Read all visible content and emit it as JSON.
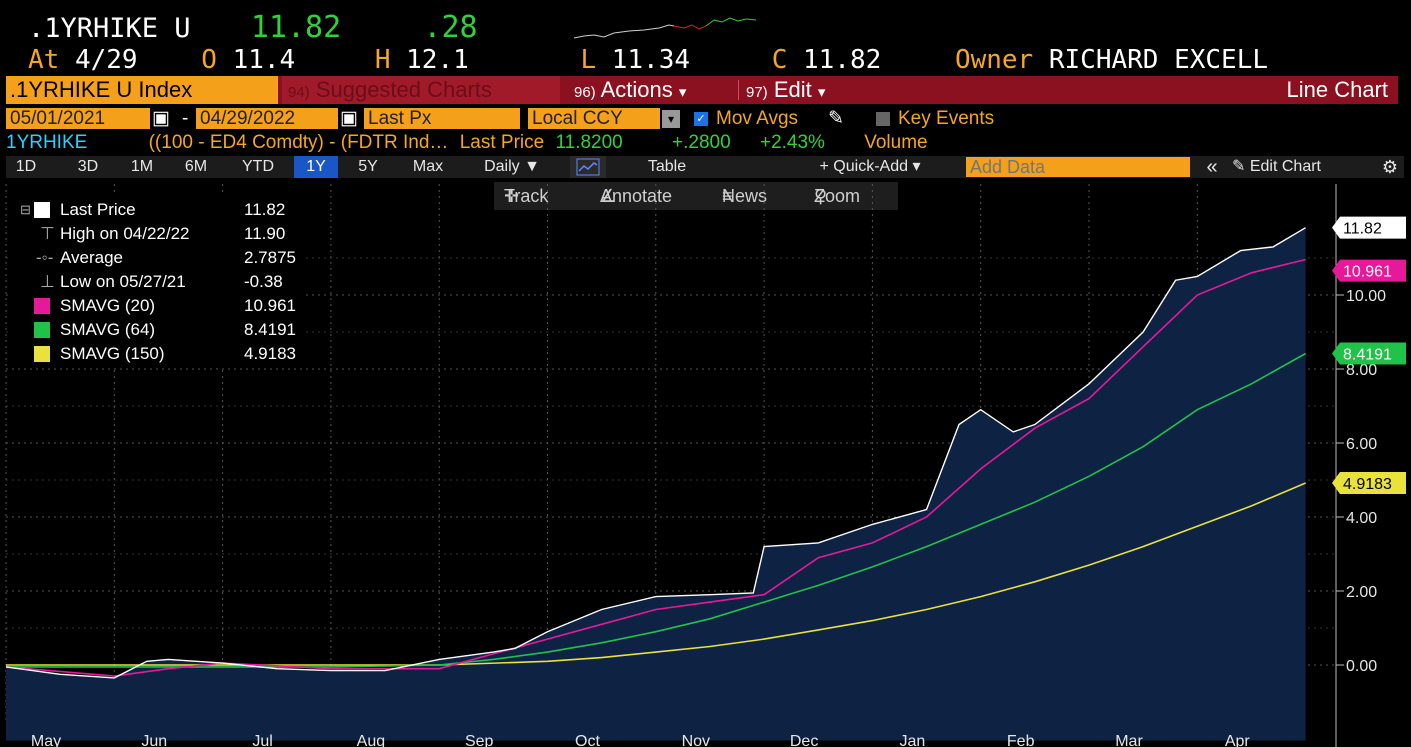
{
  "header": {
    "ticker": ".1YRHIKE U",
    "last": "11.82",
    "change": ".28",
    "at_label": "At",
    "date": "4/29",
    "open_label": "O",
    "open": "11.4",
    "high_label": "H",
    "high": "12.1",
    "low_label": "L",
    "low": "11.34",
    "close_label": "C",
    "close": "11.82",
    "owner_label": "Owner",
    "owner": "RICHARD EXCELL"
  },
  "menubar": {
    "security": ".1YRHIKE U Index",
    "suggested_num": "94)",
    "suggested": "Suggested Charts",
    "actions_num": "96)",
    "actions": "Actions",
    "edit_num": "97)",
    "edit": "Edit",
    "chart_type": "Line Chart",
    "dropdown_glyph": "▾"
  },
  "settings": {
    "start_date": "05/01/2021",
    "date_sep": "-",
    "end_date": "04/29/2022",
    "field": "Last Px",
    "currency": "Local CCY",
    "mov_avgs": "Mov Avgs",
    "key_events": "Key Events"
  },
  "formula": {
    "name": "1YRHIKE",
    "expr": "((100 - ED4 Comdty) - (FDTR Ind…",
    "last_price_label": "Last Price",
    "last_price": "11.8200",
    "change": "+.2800",
    "pct": "+2.43%",
    "volume": "Volume"
  },
  "toolbar": {
    "periods": [
      "1D",
      "3D",
      "1M",
      "6M",
      "YTD",
      "1Y",
      "5Y",
      "Max"
    ],
    "selected_period": "1Y",
    "frequency": "Daily ▼",
    "table": "Table",
    "quick_add": "+ Quick-Add ▾",
    "add_data_placeholder": "Add Data",
    "collapse": "«",
    "edit_chart": "Edit Chart"
  },
  "tools": {
    "track": "Track",
    "annotate": "Annotate",
    "news": "News",
    "zoom": "Zoom"
  },
  "legend": {
    "items": [
      {
        "label": "Last Price",
        "value": "11.82"
      },
      {
        "label": "High on 04/22/22",
        "value": "11.90"
      },
      {
        "label": "Average",
        "value": "2.7875"
      },
      {
        "label": "Low on 05/27/21",
        "value": "-0.38"
      },
      {
        "label": "SMAVG (20)",
        "value": "10.961"
      },
      {
        "label": "SMAVG (64)",
        "value": "8.4191"
      },
      {
        "label": "SMAVG (150)",
        "value": "4.9183"
      }
    ]
  },
  "colors": {
    "price": "#ffffff",
    "area_fill": "#0e2244",
    "sma20": "#e6199a",
    "sma64": "#21c24a",
    "sma150": "#e8e23a",
    "amber": "#f5a01a",
    "menubar": "#8b1020"
  },
  "chart_data": {
    "type": "line",
    "xlabel": "",
    "ylabel": "",
    "x_ticks": [
      "May",
      "Jun",
      "Jul",
      "Aug",
      "Sep",
      "Oct",
      "Nov",
      "Dec",
      "Jan",
      "Feb",
      "Mar",
      "Apr"
    ],
    "y_ticks": [
      "0.00",
      "2.00",
      "4.00",
      "6.00",
      "8.00",
      "10.00"
    ],
    "ylim": [
      -1.5,
      12.3
    ],
    "grid": true,
    "value_labels": [
      "11.82",
      "10.961",
      "8.4191",
      "4.9183"
    ],
    "series": [
      {
        "name": "Last Price",
        "x": [
          0,
          0.5,
          1,
          1.3,
          1.5,
          2,
          2.5,
          3,
          3.5,
          4,
          4.5,
          4.7,
          5,
          5.5,
          6,
          6.5,
          6.9,
          7,
          7.5,
          8,
          8.5,
          8.8,
          9,
          9.3,
          9.5,
          10,
          10.5,
          10.8,
          11,
          11.4,
          11.7,
          12
        ],
        "y": [
          -0.05,
          -0.25,
          -0.35,
          0.1,
          0.15,
          0.05,
          -0.1,
          -0.15,
          -0.15,
          0.15,
          0.35,
          0.45,
          0.9,
          1.5,
          1.85,
          1.9,
          1.95,
          3.2,
          3.3,
          3.8,
          4.2,
          6.5,
          6.9,
          6.3,
          6.5,
          7.6,
          9.0,
          10.4,
          10.5,
          11.2,
          11.3,
          11.82
        ]
      },
      {
        "name": "SMAVG (20)",
        "x": [
          0,
          1,
          1.5,
          2,
          3,
          4,
          4.5,
          5,
          5.5,
          6,
          6.5,
          7,
          7.5,
          8,
          8.5,
          9,
          9.5,
          10,
          10.5,
          11,
          11.5,
          12
        ],
        "y": [
          -0.05,
          -0.3,
          -0.1,
          0.05,
          -0.1,
          -0.1,
          0.3,
          0.7,
          1.1,
          1.5,
          1.7,
          1.9,
          2.9,
          3.3,
          4.0,
          5.3,
          6.4,
          7.2,
          8.6,
          10.0,
          10.6,
          10.96
        ]
      },
      {
        "name": "SMAVG (64)",
        "x": [
          0,
          2,
          3,
          4,
          4.5,
          5,
          5.5,
          6,
          6.5,
          7,
          7.5,
          8,
          8.5,
          9,
          9.5,
          10,
          10.5,
          11,
          11.5,
          12
        ],
        "y": [
          -0.05,
          -0.05,
          -0.05,
          0.0,
          0.15,
          0.35,
          0.6,
          0.9,
          1.25,
          1.7,
          2.15,
          2.65,
          3.2,
          3.8,
          4.4,
          5.1,
          5.9,
          6.9,
          7.6,
          8.42
        ]
      },
      {
        "name": "SMAVG (150)",
        "x": [
          0,
          3,
          4,
          5,
          5.5,
          6,
          6.5,
          7,
          7.5,
          8,
          8.5,
          9,
          9.5,
          10,
          10.5,
          11,
          11.5,
          12
        ],
        "y": [
          0.0,
          0.0,
          0.0,
          0.1,
          0.2,
          0.35,
          0.5,
          0.7,
          0.95,
          1.2,
          1.5,
          1.85,
          2.25,
          2.7,
          3.2,
          3.75,
          4.3,
          4.92
        ]
      }
    ]
  }
}
